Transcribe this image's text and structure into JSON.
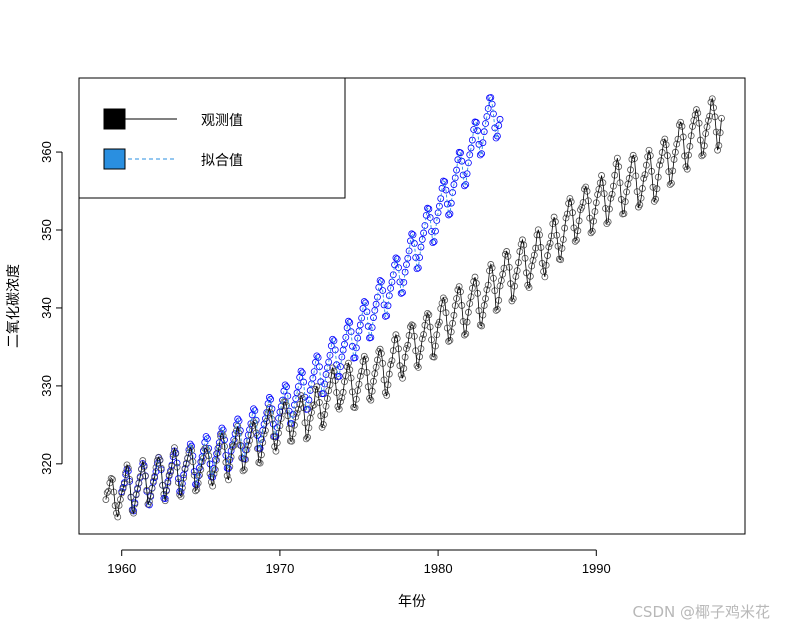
{
  "chart_data": {
    "type": "line",
    "title": "",
    "xlabel": "年份",
    "ylabel": "二氧化碳浓度",
    "xlim": [
      1957.3,
      1999.4
    ],
    "ylim": [
      311,
      369.5
    ],
    "x_ticks": [
      1960,
      1970,
      1980,
      1990
    ],
    "y_ticks": [
      320,
      330,
      340,
      350,
      360
    ],
    "x_tick_labels": [
      "1960",
      "1970",
      "1980",
      "1990"
    ],
    "y_tick_labels": [
      "320",
      "330",
      "340",
      "350",
      "360"
    ],
    "legend": {
      "position": "top-left",
      "entries": [
        {
          "label": "观测值",
          "color": "#000000",
          "line": "solid"
        },
        {
          "label": "拟合值",
          "color": "#2a8fe0",
          "line": "dashed"
        }
      ]
    },
    "series": [
      {
        "name": "观测值",
        "color": "#000000",
        "marker_color": "#555555",
        "x_start": 1959.0,
        "x_step": 0.08333,
        "values": [
          315.42,
          316.31,
          316.5,
          317.56,
          318.13,
          318.0,
          316.39,
          314.65,
          313.68,
          313.18,
          314.66,
          315.43,
          316.27,
          316.81,
          317.42,
          318.87,
          319.87,
          319.43,
          318.01,
          315.74,
          314.0,
          313.68,
          314.84,
          316.03,
          316.73,
          317.54,
          318.38,
          319.31,
          320.42,
          319.61,
          318.42,
          316.63,
          314.83,
          315.16,
          315.94,
          316.85,
          317.78,
          318.4,
          319.53,
          320.42,
          320.85,
          320.45,
          319.45,
          317.25,
          316.11,
          315.27,
          316.53,
          317.53,
          318.58,
          318.92,
          319.7,
          321.22,
          322.08,
          321.31,
          319.58,
          317.61,
          316.05,
          315.83,
          316.91,
          318.2,
          319.41,
          320.07,
          320.74,
          321.4,
          322.06,
          321.73,
          320.27,
          318.54,
          316.54,
          316.71,
          317.53,
          318.55,
          319.27,
          320.28,
          320.73,
          321.97,
          322.0,
          321.71,
          321.05,
          318.71,
          317.66,
          317.14,
          318.7,
          319.25,
          320.46,
          321.43,
          322.23,
          323.54,
          323.91,
          323.59,
          322.24,
          320.2,
          318.48,
          317.94,
          319.63,
          320.87,
          322.17,
          322.34,
          322.88,
          324.25,
          324.83,
          323.93,
          322.38,
          320.76,
          319.1,
          319.24,
          320.56,
          321.8,
          322.4,
          322.99,
          323.73,
          324.86,
          325.4,
          325.2,
          323.98,
          321.95,
          320.18,
          320.09,
          321.16,
          322.74,
          323.83,
          324.26,
          325.47,
          326.5,
          327.21,
          326.54,
          325.72,
          323.5,
          322.22,
          321.62,
          322.69,
          323.95,
          324.89,
          325.82,
          326.77,
          327.97,
          327.91,
          327.5,
          326.18,
          324.53,
          322.93,
          322.9,
          323.85,
          324.96,
          326.01,
          326.51,
          327.01,
          327.62,
          328.76,
          328.4,
          327.2,
          325.27,
          323.2,
          323.4,
          324.63,
          325.85,
          326.6,
          327.47,
          327.58,
          329.56,
          329.9,
          328.92,
          327.88,
          326.16,
          324.68,
          325.04,
          326.34,
          327.39,
          328.37,
          329.4,
          330.14,
          331.33,
          332.31,
          331.9,
          330.7,
          329.15,
          327.35,
          327.02,
          327.99,
          328.48,
          329.18,
          330.55,
          331.32,
          332.48,
          332.92,
          332.08,
          331.01,
          329.23,
          327.27,
          327.21,
          328.29,
          329.41,
          330.23,
          331.25,
          331.87,
          333.14,
          333.8,
          333.43,
          331.73,
          329.9,
          328.4,
          328.17,
          329.32,
          330.59,
          331.58,
          332.39,
          333.33,
          334.41,
          334.71,
          334.17,
          332.89,
          330.77,
          329.14,
          328.78,
          330.14,
          331.52,
          332.75,
          333.24,
          334.53,
          335.9,
          336.57,
          336.1,
          334.76,
          332.59,
          331.42,
          330.98,
          332.24,
          333.68,
          334.8,
          335.22,
          336.47,
          337.59,
          337.84,
          337.72,
          336.37,
          334.51,
          332.6,
          332.38,
          333.75,
          334.78,
          336.05,
          336.59,
          337.79,
          338.71,
          339.3,
          339.12,
          337.56,
          335.92,
          333.75,
          333.7,
          335.12,
          336.56,
          337.84,
          338.19,
          339.91,
          340.6,
          341.29,
          341.0,
          339.39,
          337.43,
          335.72,
          335.84,
          336.93,
          338.04,
          339.06,
          340.3,
          341.21,
          342.33,
          342.74,
          342.08,
          340.32,
          338.26,
          336.52,
          336.68,
          338.19,
          339.44,
          340.57,
          341.44,
          342.53,
          343.39,
          343.96,
          343.18,
          341.88,
          339.65,
          337.81,
          337.69,
          339.09,
          340.32,
          341.2,
          342.35,
          342.93,
          344.77,
          345.58,
          345.14,
          343.81,
          342.21,
          339.69,
          339.82,
          340.98,
          342.82,
          343.52,
          344.33,
          345.11,
          346.88,
          347.25,
          346.62,
          345.22,
          343.11,
          340.9,
          341.18,
          342.8,
          344.04,
          344.79,
          345.82,
          347.25,
          348.17,
          348.74,
          348.07,
          346.38,
          344.51,
          342.92,
          342.62,
          344.06,
          345.38,
          346.11,
          346.78,
          347.68,
          349.37,
          350.03,
          349.37,
          347.76,
          345.73,
          344.68,
          343.99,
          345.48,
          346.72,
          347.84,
          348.29,
          349.23,
          350.8,
          351.66,
          351.07,
          349.33,
          347.92,
          346.27,
          346.18,
          347.64,
          348.78,
          350.25,
          351.54,
          352.05,
          353.41,
          354.04,
          353.62,
          352.22,
          350.27,
          348.55,
          348.72,
          349.91,
          351.18,
          352.6,
          352.92,
          353.53,
          355.26,
          355.52,
          354.97,
          353.75,
          351.52,
          349.64,
          349.83,
          351.14,
          352.37,
          353.5,
          354.55,
          355.23,
          356.04,
          357.0,
          356.07,
          354.67,
          352.76,
          350.82,
          351.04,
          352.69,
          354.07,
          354.59,
          355.63,
          357.03,
          358.48,
          359.22,
          358.12,
          356.06,
          353.92,
          352.05,
          352.11,
          353.64,
          354.89,
          355.88,
          356.63,
          357.72,
          359.07,
          359.58,
          359.17,
          356.94,
          354.92,
          352.94,
          353.23,
          354.09,
          355.33,
          356.63,
          357.1,
          358.32,
          359.41,
          360.23,
          359.55,
          357.53,
          355.48,
          353.67,
          353.95,
          355.3,
          356.78,
          358.34,
          358.89,
          359.95,
          361.25,
          361.67,
          360.94,
          359.55,
          357.49,
          355.84,
          356.0,
          357.59,
          359.05,
          359.98,
          361.03,
          361.66,
          363.48,
          363.82,
          363.3,
          361.94,
          359.5,
          358.11,
          357.8,
          359.61,
          360.74,
          362.09,
          363.29,
          364.06,
          364.76,
          365.45,
          365.01,
          363.7,
          361.54,
          359.51,
          359.65,
          360.8,
          362.38,
          363.23,
          364.06,
          364.61,
          366.4,
          366.84,
          365.68,
          364.52,
          362.57,
          360.24,
          360.83,
          362.49,
          364.34
        ]
      },
      {
        "name": "拟合值",
        "color": "#2a8fe0",
        "marker_color": "#0000ff",
        "x_start": 1960.0,
        "x_step": 0.08333,
        "values": [
          316.43,
          316.97,
          317.58,
          318.63,
          319.33,
          319.08,
          317.75,
          315.71,
          314.1,
          313.96,
          315.01,
          316.1,
          316.87,
          317.52,
          318.23,
          319.33,
          320.04,
          319.79,
          318.47,
          316.47,
          314.81,
          314.73,
          315.81,
          316.9,
          317.62,
          318.24,
          319.0,
          320.05,
          320.8,
          320.5,
          319.26,
          317.25,
          315.58,
          315.54,
          316.63,
          317.73,
          318.46,
          319.1,
          319.84,
          320.92,
          321.66,
          321.4,
          320.11,
          318.11,
          316.46,
          316.39,
          317.48,
          318.59,
          319.32,
          319.98,
          320.7,
          321.81,
          322.55,
          322.28,
          321.02,
          319.01,
          317.36,
          317.3,
          318.4,
          319.51,
          320.26,
          320.92,
          321.67,
          322.76,
          323.51,
          323.24,
          321.98,
          319.99,
          318.35,
          318.29,
          319.4,
          320.54,
          321.3,
          321.98,
          322.72,
          323.84,
          324.6,
          324.34,
          323.08,
          321.09,
          319.46,
          319.41,
          320.53,
          321.67,
          322.44,
          323.11,
          323.87,
          325.0,
          325.76,
          325.51,
          324.27,
          322.29,
          320.67,
          320.63,
          321.77,
          322.92,
          323.7,
          324.39,
          325.16,
          326.29,
          327.07,
          326.83,
          325.59,
          323.63,
          322.0,
          321.98,
          323.14,
          324.3,
          325.09,
          325.8,
          326.59,
          327.73,
          328.52,
          328.28,
          327.06,
          325.11,
          323.51,
          323.5,
          324.66,
          325.85,
          326.66,
          327.37,
          328.17,
          329.34,
          330.13,
          329.9,
          328.7,
          326.76,
          325.18,
          325.17,
          326.36,
          327.56,
          328.37,
          329.11,
          329.92,
          331.1,
          331.9,
          331.69,
          330.49,
          328.56,
          326.99,
          327.0,
          328.2,
          329.42,
          330.26,
          331.0,
          331.83,
          333.03,
          333.85,
          333.64,
          332.46,
          330.54,
          329.0,
          329.02,
          330.24,
          331.47,
          332.33,
          333.07,
          333.93,
          335.14,
          335.98,
          335.79,
          334.62,
          332.72,
          331.2,
          331.23,
          332.47,
          333.71,
          334.6,
          335.35,
          336.23,
          337.45,
          338.3,
          338.13,
          336.96,
          335.08,
          333.57,
          333.62,
          334.88,
          336.14,
          337.04,
          337.82,
          338.71,
          339.94,
          340.82,
          340.65,
          339.51,
          337.64,
          336.15,
          336.21,
          337.49,
          338.77,
          339.69,
          340.48,
          341.39,
          342.64,
          343.52,
          343.38,
          342.24,
          340.39,
          338.92,
          339.0,
          340.29,
          341.58,
          342.53,
          343.33,
          344.26,
          345.53,
          346.42,
          346.29,
          345.17,
          343.34,
          341.88,
          341.98,
          343.28,
          344.6,
          345.56,
          346.38,
          347.32,
          348.6,
          349.51,
          349.39,
          348.28,
          346.47,
          345.03,
          345.14,
          346.47,
          347.81,
          348.79,
          349.62,
          350.58,
          351.88,
          352.8,
          352.7,
          351.6,
          349.81,
          348.38,
          348.52,
          349.86,
          351.22,
          352.21,
          353.06,
          354.03,
          355.35,
          356.29,
          356.2,
          355.12,
          353.33,
          351.93,
          352.08,
          353.44,
          354.81,
          355.83,
          356.69,
          357.69,
          359.02,
          359.97,
          359.9,
          358.83,
          357.06,
          355.67,
          355.84,
          357.22,
          358.61,
          359.65,
          360.53,
          361.54,
          362.89,
          363.86,
          363.8,
          362.74,
          360.99,
          359.62,
          359.8,
          361.2,
          362.61,
          363.66,
          364.56,
          365.59,
          366.95,
          367.0,
          366.15,
          364.9,
          363.1,
          361.8,
          362.05,
          363.4,
          364.2
        ]
      }
    ]
  },
  "watermark": "CSDN @椰子鸡米花"
}
